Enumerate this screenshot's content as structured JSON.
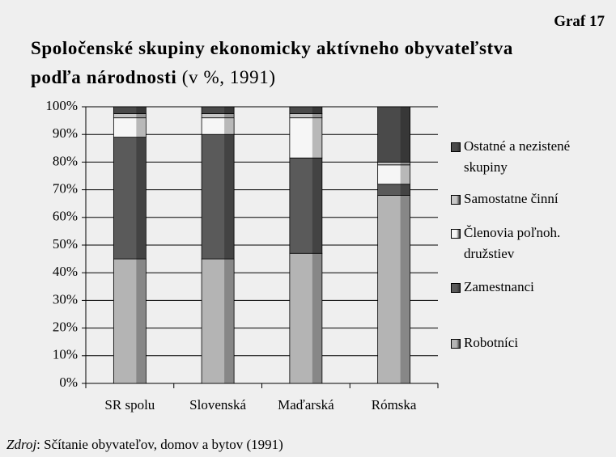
{
  "chart_data": {
    "type": "stacked_bar",
    "label": "Graf 17",
    "title": "Spoločenské skupiny ekonomicky aktívneho obyvateľstva podľa národnosti",
    "subtitle": "(v %, 1991)",
    "source_label": "Zdroj",
    "source": ": Sčítanie obyvateľov, domov a bytov (1991)",
    "categories": [
      "SR spolu",
      "Slovenská",
      "Maďarská",
      "Rómska"
    ],
    "series": [
      {
        "name": "Robotníci",
        "color": "#b4b4b4",
        "values": [
          45,
          45,
          47,
          68
        ]
      },
      {
        "name": "Zamestnanci",
        "color": "#5a5a5a",
        "values": [
          44,
          45,
          34.5,
          4
        ]
      },
      {
        "name": "Členovia poľnoh. družstiev",
        "color": "#f6f6f6",
        "values": [
          7,
          6,
          14.5,
          7
        ]
      },
      {
        "name": "Samostatne činní",
        "color": "#c8c8c8",
        "values": [
          1.5,
          1.5,
          1.5,
          1
        ]
      },
      {
        "name": "Ostatné a nezistené skupiny",
        "color": "#4a4a4a",
        "values": [
          2.5,
          2.5,
          2.5,
          20
        ]
      }
    ],
    "ylim": [
      0,
      100
    ],
    "yticks": [
      {
        "value": 0,
        "label": "0%"
      },
      {
        "value": 10,
        "label": "10%"
      },
      {
        "value": 20,
        "label": "20%"
      },
      {
        "value": 30,
        "label": "30%"
      },
      {
        "value": 40,
        "label": "40%"
      },
      {
        "value": 50,
        "label": "50%"
      },
      {
        "value": 60,
        "label": "60%"
      },
      {
        "value": 70,
        "label": "70%"
      },
      {
        "value": 80,
        "label": "80%"
      },
      {
        "value": 90,
        "label": "90%"
      },
      {
        "value": 100,
        "label": "100%"
      }
    ],
    "grid": true
  }
}
